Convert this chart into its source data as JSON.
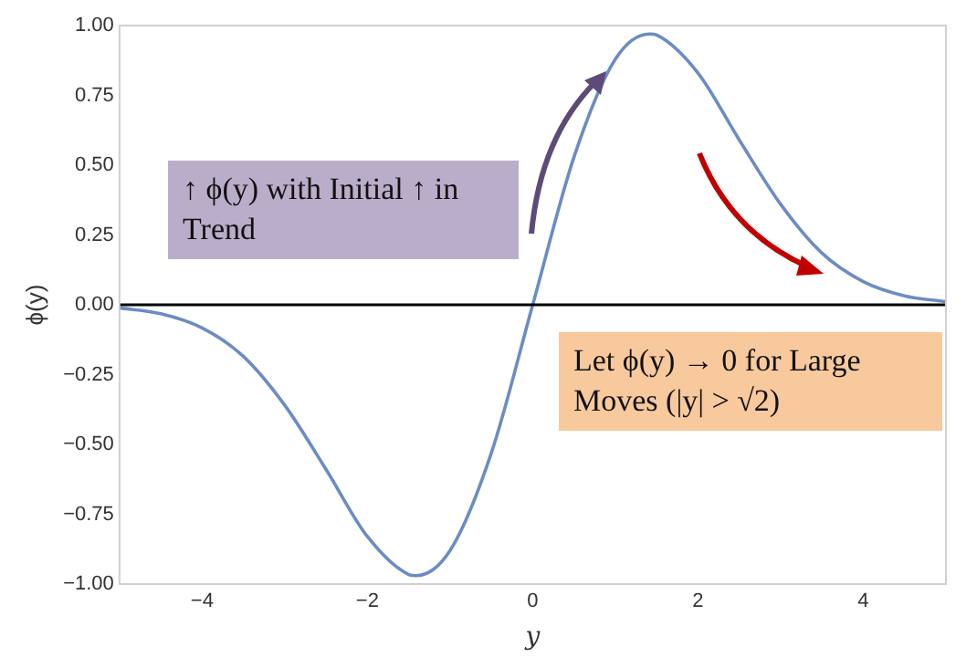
{
  "chart_data": {
    "type": "line",
    "xlabel": "y",
    "ylabel": "ϕ(y)",
    "x": [
      -5,
      -4.5,
      -4,
      -3.5,
      -3,
      -2.5,
      -2,
      -1.5,
      -1.414,
      -1,
      -0.5,
      0,
      0.5,
      1,
      1.414,
      1.5,
      2,
      2.5,
      3,
      3.5,
      4,
      4.5,
      5
    ],
    "series": [
      {
        "color": "#6b8cc4",
        "values": [
          -0.011,
          -0.032,
          -0.083,
          -0.185,
          -0.36,
          -0.59,
          -0.83,
          -0.966,
          -0.97,
          -0.88,
          -0.53,
          0,
          0.53,
          0.88,
          0.97,
          0.966,
          0.83,
          0.59,
          0.36,
          0.185,
          0.083,
          0.032,
          0.011
        ]
      }
    ],
    "xlim": [
      -5,
      5
    ],
    "xticks": [
      {
        "value": -4,
        "label": "−4"
      },
      {
        "value": -2,
        "label": "−2"
      },
      0,
      2,
      4
    ],
    "ylim": [
      -1,
      1
    ],
    "yticks": [
      {
        "value": -1,
        "label": "−1.00"
      },
      {
        "value": -0.75,
        "label": "−0.75"
      },
      {
        "value": -0.5,
        "label": "−0.50"
      },
      {
        "value": -0.25,
        "label": "−0.25"
      },
      {
        "value": 0,
        "label": "0.00"
      },
      {
        "value": 0.25,
        "label": "0.25"
      },
      {
        "value": 0.5,
        "label": "0.50"
      },
      {
        "value": 0.75,
        "label": "0.75"
      },
      {
        "value": 1,
        "label": "1.00"
      }
    ],
    "grid": false,
    "legend": false,
    "marker": "none",
    "line_style": "solid",
    "ref_lines": [
      {
        "axis": "y",
        "value": 0,
        "color": "#000000"
      }
    ],
    "annotations": [
      "↑ ϕ(y) with Initial ↑ in Trend",
      "Let ϕ(y) → 0 for Large Moves (|y| > √2)"
    ]
  }
}
